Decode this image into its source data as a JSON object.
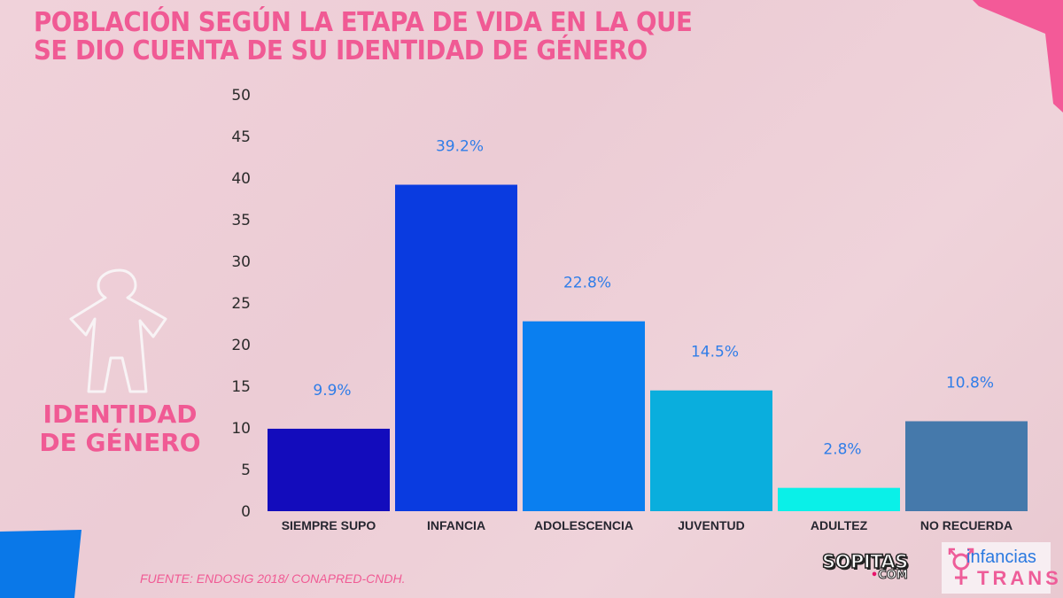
{
  "title": {
    "line1": "POBLACIÓN SEGÚN LA ETAPA DE VIDA EN LA QUE",
    "line2_normal": "SE DIO CUENTA DE SU ",
    "line2_strong": "IDENTIDAD DE GÉNERO"
  },
  "side_label": {
    "line1": "IDENTIDAD",
    "line2": "DE GÉNERO"
  },
  "source": "FUENTE: ENDOSIG 2018/ CONAPRED-CNDH.",
  "logos": {
    "sopitas_main": "SOPITAS",
    "sopitas_dot": "•",
    "sopitas_com": "COM",
    "infancias": "infancias",
    "trans": "TRANS"
  },
  "colors": {
    "accent_pink": "#f05a94",
    "value_label": "#2f7de8",
    "corner_pink": "#f35a98",
    "corner_blue": "#0a78e8"
  },
  "chart_data": {
    "type": "bar",
    "title": "POBLACIÓN SEGÚN LA ETAPA DE VIDA EN LA QUE SE DIO CUENTA DE SU IDENTIDAD DE GÉNERO",
    "xlabel": "",
    "ylabel": "",
    "ylim": [
      0,
      50
    ],
    "yticks": [
      "0",
      "5",
      "10",
      "15",
      "20",
      "25",
      "30",
      "35",
      "40",
      "45",
      "50"
    ],
    "grid": false,
    "categories": [
      "SIEMPRE SUPO",
      "INFANCIA",
      "ADOLESCENCIA",
      "JUVENTUD",
      "ADULTEZ",
      "NO RECUERDA"
    ],
    "values": [
      9.9,
      39.2,
      22.8,
      14.5,
      2.8,
      10.8
    ],
    "value_labels": [
      "9.9%",
      "39.2%",
      "22.8%",
      "14.5%",
      "2.8%",
      "10.8%"
    ],
    "bar_colors": [
      "#130cbc",
      "#0a3be0",
      "#0a7ff0",
      "#0aaedd",
      "#0af0e8",
      "#4579ab"
    ]
  }
}
